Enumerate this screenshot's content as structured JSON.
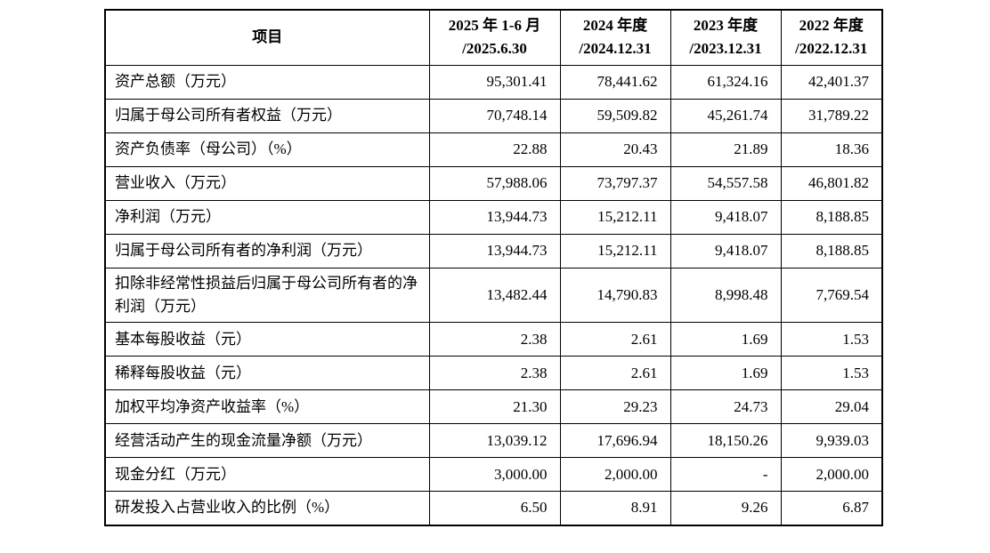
{
  "table": {
    "header": {
      "item_label": "项目",
      "periods": [
        {
          "line1": "2025 年 1-6 月",
          "line2": "/2025.6.30"
        },
        {
          "line1": "2024 年度",
          "line2": "/2024.12.31"
        },
        {
          "line1": "2023 年度",
          "line2": "/2023.12.31"
        },
        {
          "line1": "2022 年度",
          "line2": "/2022.12.31"
        }
      ]
    },
    "rows": [
      {
        "label": "资产总额（万元）",
        "values": [
          "95,301.41",
          "78,441.62",
          "61,324.16",
          "42,401.37"
        ]
      },
      {
        "label": "归属于母公司所有者权益（万元）",
        "values": [
          "70,748.14",
          "59,509.82",
          "45,261.74",
          "31,789.22"
        ]
      },
      {
        "label": "资产负债率（母公司）（%）",
        "values": [
          "22.88",
          "20.43",
          "21.89",
          "18.36"
        ]
      },
      {
        "label": "营业收入（万元）",
        "values": [
          "57,988.06",
          "73,797.37",
          "54,557.58",
          "46,801.82"
        ]
      },
      {
        "label": "净利润（万元）",
        "values": [
          "13,944.73",
          "15,212.11",
          "9,418.07",
          "8,188.85"
        ]
      },
      {
        "label": "归属于母公司所有者的净利润（万元）",
        "values": [
          "13,944.73",
          "15,212.11",
          "9,418.07",
          "8,188.85"
        ]
      },
      {
        "label": "扣除非经常性损益后归属于母公司所有者的净利润（万元）",
        "values": [
          "13,482.44",
          "14,790.83",
          "8,998.48",
          "7,769.54"
        ]
      },
      {
        "label": "基本每股收益（元）",
        "values": [
          "2.38",
          "2.61",
          "1.69",
          "1.53"
        ]
      },
      {
        "label": "稀释每股收益（元）",
        "values": [
          "2.38",
          "2.61",
          "1.69",
          "1.53"
        ]
      },
      {
        "label": "加权平均净资产收益率（%）",
        "values": [
          "21.30",
          "29.23",
          "24.73",
          "29.04"
        ]
      },
      {
        "label": "经营活动产生的现金流量净额（万元）",
        "values": [
          "13,039.12",
          "17,696.94",
          "18,150.26",
          "9,939.03"
        ]
      },
      {
        "label": "现金分红（万元）",
        "values": [
          "3,000.00",
          "2,000.00",
          "-",
          "2,000.00"
        ]
      },
      {
        "label": "研发投入占营业收入的比例（%）",
        "values": [
          "6.50",
          "8.91",
          "9.26",
          "6.87"
        ]
      }
    ],
    "colors": {
      "border": "#000000",
      "text": "#000000",
      "background": "#ffffff"
    }
  }
}
